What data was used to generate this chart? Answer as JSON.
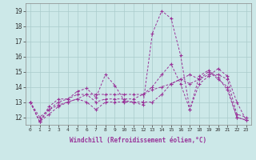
{
  "xlabel": "Windchill (Refroidissement éolien,°C)",
  "xlim": [
    -0.5,
    23.5
  ],
  "ylim": [
    11.5,
    19.5
  ],
  "yticks": [
    12,
    13,
    14,
    15,
    16,
    17,
    18,
    19
  ],
  "xticks": [
    0,
    1,
    2,
    3,
    4,
    5,
    6,
    7,
    8,
    9,
    10,
    11,
    12,
    13,
    14,
    15,
    16,
    17,
    18,
    19,
    20,
    21,
    22,
    23
  ],
  "background_color": "#cce8e8",
  "grid_color": "#aacccc",
  "line_color": "#993399",
  "series": [
    [
      13.0,
      11.7,
      12.7,
      13.2,
      13.2,
      13.7,
      13.9,
      13.3,
      14.8,
      14.1,
      13.1,
      13.0,
      12.8,
      17.5,
      19.0,
      18.5,
      16.1,
      12.5,
      14.7,
      15.1,
      14.6,
      13.8,
      12.0,
      11.8
    ],
    [
      13.0,
      11.7,
      12.2,
      12.7,
      13.0,
      13.2,
      13.0,
      12.5,
      13.0,
      13.0,
      13.0,
      13.0,
      13.0,
      13.0,
      13.5,
      14.2,
      14.5,
      14.8,
      14.5,
      15.0,
      14.5,
      14.0,
      12.0,
      11.8
    ],
    [
      13.0,
      11.7,
      12.5,
      13.0,
      13.2,
      13.5,
      13.5,
      13.0,
      13.2,
      13.2,
      13.2,
      13.2,
      13.5,
      14.0,
      14.8,
      15.5,
      14.2,
      12.5,
      14.2,
      14.7,
      15.2,
      14.7,
      13.0,
      11.8
    ],
    [
      13.0,
      12.0,
      12.5,
      12.8,
      13.0,
      13.2,
      13.5,
      13.5,
      13.5,
      13.5,
      13.5,
      13.5,
      13.5,
      13.8,
      14.0,
      14.2,
      14.5,
      14.2,
      14.5,
      14.8,
      14.8,
      14.5,
      12.2,
      12.0
    ]
  ]
}
